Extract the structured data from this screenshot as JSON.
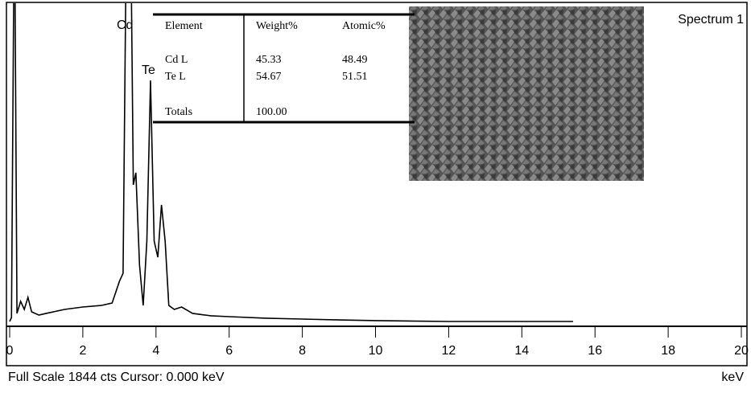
{
  "chart_data": {
    "type": "line",
    "title": "Spectrum 1",
    "x_label": "keV",
    "footer": "Full Scale 1844 cts  Cursor: 0.000 keV",
    "annotations": [
      "Cd",
      "Te"
    ],
    "xlim": [
      0,
      20
    ],
    "xticks": [
      0,
      2,
      4,
      6,
      8,
      10,
      12,
      14,
      16,
      18,
      20
    ],
    "ylim": [
      0,
      1844
    ],
    "color": "#000000",
    "x": [
      0,
      0.05,
      0.13,
      0.2,
      0.3,
      0.4,
      0.5,
      0.6,
      0.8,
      1.0,
      1.5,
      2.0,
      2.5,
      2.8,
      3.0,
      3.1,
      3.2,
      3.3,
      3.38,
      3.45,
      3.55,
      3.65,
      3.75,
      3.85,
      3.95,
      4.05,
      4.15,
      4.25,
      4.35,
      4.5,
      4.7,
      5.0,
      5.5,
      6,
      7,
      8,
      9,
      10,
      12,
      15.4
    ],
    "values": [
      0,
      23,
      2500,
      47,
      117,
      70,
      140,
      56,
      37,
      47,
      70,
      84,
      93,
      107,
      233,
      280,
      2500,
      2500,
      794,
      864,
      327,
      93,
      467,
      1400,
      467,
      373,
      677,
      467,
      93,
      70,
      84,
      47,
      33,
      28,
      19,
      14,
      9,
      5,
      0,
      0
    ],
    "table": {
      "header": [
        "Element",
        "Weight%",
        "Atomic%"
      ],
      "rows": [
        [
          "Cd L",
          "45.33",
          "48.49"
        ],
        [
          "Te L",
          "54.67",
          "51.51"
        ]
      ],
      "totals": [
        "Totals",
        "100.00"
      ]
    }
  }
}
